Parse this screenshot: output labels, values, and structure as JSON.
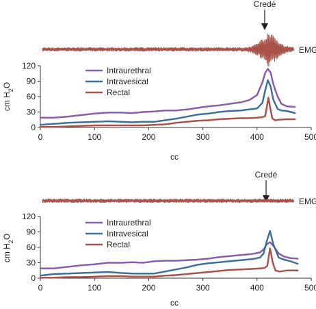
{
  "colors": {
    "intraurethral": "#8a5ea8",
    "intravesical": "#3d6f9c",
    "rectal": "#a8524a",
    "emg": "#a8524a",
    "axis": "#333333"
  },
  "chart_data": [
    {
      "type": "line",
      "xlabel": "cc",
      "ylabel": "cm H2O",
      "ylabel_main": "cm H",
      "ylabel_sub": "2",
      "ylabel_end": "O",
      "xlim": [
        0,
        500
      ],
      "ylim": [
        0,
        120
      ],
      "xticks": [
        "0",
        "100",
        "200",
        "300",
        "400",
        "500"
      ],
      "yticks": [
        "0",
        "30",
        "60",
        "90",
        "120"
      ],
      "legend_position": "top-left",
      "emg_label": "EMG",
      "annotation": {
        "text": "Credé",
        "x": 422
      },
      "emg_burst": {
        "center": 422,
        "amplitude": "large"
      },
      "series": [
        {
          "name": "Intraurethral",
          "color_key": "intraurethral",
          "x": [
            0,
            25,
            50,
            75,
            100,
            125,
            150,
            170,
            190,
            210,
            230,
            250,
            270,
            290,
            310,
            330,
            350,
            370,
            385,
            400,
            410,
            415,
            420,
            425,
            430,
            438,
            445,
            455,
            470
          ],
          "y": [
            19,
            19,
            21,
            24,
            27,
            29,
            29,
            28,
            30,
            31,
            33,
            33,
            35,
            38,
            41,
            43,
            46,
            49,
            53,
            63,
            88,
            106,
            114,
            107,
            84,
            60,
            46,
            41,
            40
          ]
        },
        {
          "name": "Intravesical",
          "color_key": "intravesical",
          "x": [
            0,
            25,
            50,
            75,
            100,
            125,
            150,
            170,
            190,
            210,
            230,
            250,
            270,
            290,
            310,
            330,
            350,
            370,
            385,
            400,
            410,
            415,
            420,
            425,
            430,
            438,
            445,
            455,
            470
          ],
          "y": [
            5,
            7,
            9,
            10,
            11,
            12,
            11,
            10,
            11,
            11,
            14,
            17,
            21,
            25,
            27,
            30,
            32,
            33,
            35,
            37,
            48,
            72,
            92,
            80,
            54,
            36,
            33,
            32,
            28
          ]
        },
        {
          "name": "Rectal",
          "color_key": "rectal",
          "x": [
            0,
            25,
            50,
            75,
            100,
            125,
            150,
            170,
            190,
            210,
            230,
            250,
            270,
            290,
            310,
            330,
            350,
            370,
            385,
            400,
            410,
            415,
            418,
            421,
            424,
            428,
            433,
            440,
            455,
            470
          ],
          "y": [
            1,
            1,
            2,
            3,
            4,
            4,
            4,
            4,
            4,
            5,
            6,
            9,
            11,
            13,
            14,
            16,
            17,
            18,
            18,
            19,
            20,
            22,
            40,
            58,
            40,
            18,
            14,
            15,
            16,
            16
          ]
        }
      ]
    },
    {
      "type": "line",
      "xlabel": "cc",
      "ylabel": "cm H2O",
      "ylabel_main": "cm H",
      "ylabel_sub": "2",
      "ylabel_end": "O",
      "xlim": [
        0,
        500
      ],
      "ylim": [
        0,
        120
      ],
      "xticks": [
        "0",
        "100",
        "200",
        "300",
        "400",
        "500"
      ],
      "yticks": [
        "0",
        "30",
        "60",
        "90",
        "120"
      ],
      "legend_position": "top-left",
      "emg_label": "EMG",
      "annotation": {
        "text": "Credé",
        "x": 424
      },
      "emg_burst": {
        "center": 424,
        "amplitude": "none"
      },
      "series": [
        {
          "name": "Intraurethral",
          "color_key": "intraurethral",
          "x": [
            0,
            25,
            50,
            75,
            100,
            125,
            150,
            170,
            190,
            210,
            230,
            250,
            270,
            290,
            310,
            330,
            350,
            370,
            390,
            405,
            412,
            418,
            424,
            430,
            440,
            450,
            462,
            475
          ],
          "y": [
            19,
            19,
            22,
            25,
            27,
            30,
            30,
            31,
            30,
            33,
            34,
            34,
            35,
            36,
            38,
            41,
            43,
            45,
            47,
            50,
            56,
            66,
            70,
            63,
            48,
            42,
            39,
            38
          ]
        },
        {
          "name": "Intravesical",
          "color_key": "intravesical",
          "x": [
            0,
            25,
            50,
            75,
            100,
            125,
            150,
            170,
            190,
            210,
            230,
            250,
            270,
            290,
            310,
            330,
            350,
            370,
            390,
            405,
            412,
            418,
            424,
            430,
            440,
            450,
            462,
            475
          ],
          "y": [
            5,
            8,
            9,
            10,
            11,
            12,
            10,
            9,
            9,
            9,
            13,
            17,
            21,
            26,
            29,
            31,
            33,
            35,
            37,
            40,
            48,
            72,
            92,
            66,
            40,
            36,
            33,
            28
          ]
        },
        {
          "name": "Rectal",
          "color_key": "rectal",
          "x": [
            0,
            25,
            50,
            75,
            100,
            125,
            150,
            170,
            190,
            210,
            230,
            250,
            270,
            290,
            310,
            330,
            350,
            370,
            390,
            405,
            414,
            419,
            424,
            429,
            434,
            442,
            455,
            475
          ],
          "y": [
            1,
            1,
            2,
            2,
            3,
            4,
            4,
            3,
            3,
            3,
            5,
            6,
            8,
            10,
            12,
            14,
            16,
            17,
            18,
            19,
            20,
            24,
            58,
            30,
            15,
            13,
            15,
            15
          ]
        }
      ]
    }
  ]
}
